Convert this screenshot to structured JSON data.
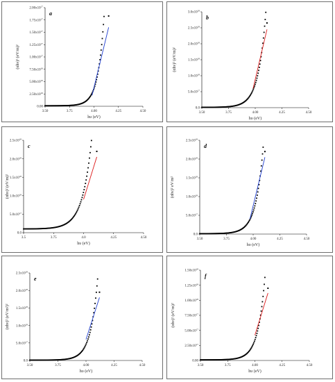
{
  "figure": {
    "colors": {
      "data": "#000000",
      "fit_blue": "#1f3fd0",
      "fit_red": "#dd1a1a",
      "axis": "#000000",
      "frame": "#6e6e6e"
    },
    "marker": "filled-square"
  },
  "chart_data": [
    {
      "type": "scatter",
      "panel": "a",
      "ylabel": "(αhν)² (eV/m)²",
      "xlabel": "hυ (eV)",
      "xlim": [
        3.5,
        4.5
      ],
      "ylim": [
        0,
        2e+17
      ],
      "xticks": [
        "3.50",
        "3.75",
        "4.00",
        "4.25",
        "4.50"
      ],
      "yticks": [
        {
          "v": 0,
          "m": "0.00",
          "e": ""
        },
        {
          "v": 2.5e+16,
          "m": "2.50x10",
          "e": "16"
        },
        {
          "v": 5e+16,
          "m": "5.00x10",
          "e": "16"
        },
        {
          "v": 7.5e+16,
          "m": "7.50x10",
          "e": "16"
        },
        {
          "v": 1e+17,
          "m": "1.00x10",
          "e": "17"
        },
        {
          "v": 1.25e+17,
          "m": "1.25x10",
          "e": "17"
        },
        {
          "v": 1.5e+17,
          "m": "1.50x10",
          "e": "17"
        },
        {
          "v": 1.75e+17,
          "m": "1.75x10",
          "e": "17"
        },
        {
          "v": 2e+17,
          "m": "2.00x10",
          "e": "17"
        }
      ],
      "curve": {
        "base": 1000000000000000.0,
        "edge": 3.5e+16,
        "k": 16,
        "x_start": 3.5,
        "x_end": 4.15
      },
      "fit": {
        "color": "#1f3fd0",
        "x": [
          3.98,
          4.15
        ],
        "y": [
          2.2e+16,
          1.6e+17
        ]
      },
      "outlier": {
        "x": 4.15,
        "y": 1.83e+17
      }
    },
    {
      "type": "scatter",
      "panel": "b",
      "ylabel": "(αhν)² (eV/m)²",
      "xlabel": "hυ (eV)",
      "xlim": [
        3.5,
        4.5
      ],
      "ylim": [
        0,
        3e+18
      ],
      "xticks": [
        "3.50",
        "3.75",
        "4.00",
        "4.25",
        "4.50"
      ],
      "yticks": [
        {
          "v": 0,
          "m": "0.0",
          "e": ""
        },
        {
          "v": 5e+17,
          "m": "5.0x10",
          "e": "17"
        },
        {
          "v": 1e+18,
          "m": "1.0x10",
          "e": "18"
        },
        {
          "v": 1.5e+18,
          "m": "1.5x10",
          "e": "18"
        },
        {
          "v": 2e+18,
          "m": "2.0x10",
          "e": "18"
        },
        {
          "v": 2.5e+18,
          "m": "2.5x10",
          "e": "18"
        },
        {
          "v": 3e+18,
          "m": "3.0x10",
          "e": "18"
        }
      ],
      "curve": {
        "base": 1e+16,
        "edge": 7.3e+17,
        "k": 14.2,
        "x_start": 3.5,
        "x_end": 4.11
      },
      "fit": {
        "color": "#dd1a1a",
        "x": [
          3.98,
          4.11
        ],
        "y": [
          6e+17,
          2.45e+18
        ]
      },
      "outlier": {
        "x": 4.11,
        "y": 2.65e+18
      }
    },
    {
      "type": "scatter",
      "panel": "c",
      "ylabel": "(αhν)² (eV/m)²",
      "xlabel": "hυ (eV)",
      "xlim": [
        3.5,
        4.5
      ],
      "ylim": [
        0,
        2.5e+18
      ],
      "xticks": [
        "3.5",
        "3.75",
        "4.0",
        "4.25",
        "4.50"
      ],
      "yticks": [
        {
          "v": 0,
          "m": "0.0",
          "e": ""
        },
        {
          "v": 5e+17,
          "m": "5.0x10",
          "e": "17"
        },
        {
          "v": 1e+18,
          "m": "1.0x10",
          "e": "18"
        },
        {
          "v": 1.5e+18,
          "m": "1.5x10",
          "e": "18"
        },
        {
          "v": 2e+18,
          "m": "2.0x10",
          "e": "18"
        },
        {
          "v": 2.5e+18,
          "m": "2.5x10",
          "e": "18"
        }
      ],
      "curve": {
        "base": 1e+17,
        "edge": 1e+18,
        "k": 13.3,
        "x_start": 3.5,
        "x_end": 4.11
      },
      "fit": {
        "color": "#dd1a1a",
        "x": [
          4.0,
          4.11
        ],
        "y": [
          9e+17,
          2.05e+18
        ]
      },
      "outlier": {
        "x": 4.11,
        "y": 2.2e+18
      }
    },
    {
      "type": "scatter",
      "panel": "d",
      "ylabel": "(αhν)² eV/m²",
      "xlabel": "hυ (eV)",
      "xlim": [
        3.5,
        4.5
      ],
      "ylim": [
        0,
        2.5e+18
      ],
      "xticks": [
        "3.50",
        "3.75",
        "4.00",
        "4.25",
        "4.50"
      ],
      "yticks": [
        {
          "v": 0,
          "m": "0.0",
          "e": ""
        },
        {
          "v": 5e+17,
          "m": "5.0x10",
          "e": "17"
        },
        {
          "v": 1e+18,
          "m": "1.0x10",
          "e": "18"
        },
        {
          "v": 1.5e+18,
          "m": "1.5x10",
          "e": "18"
        },
        {
          "v": 2e+18,
          "m": "2.0x10",
          "e": "18"
        },
        {
          "v": 2.5e+18,
          "m": "2.5x10",
          "e": "18"
        }
      ],
      "curve": {
        "base": 1e+16,
        "edge": 5.9e+17,
        "k": 14.6,
        "x_start": 3.5,
        "x_end": 4.11
      },
      "fit": {
        "color": "#1f3fd0",
        "x": [
          3.97,
          4.11
        ],
        "y": [
          4e+17,
          2.05e+18
        ]
      },
      "outlier": {
        "x": 4.11,
        "y": 2.2e+18
      }
    },
    {
      "type": "scatter",
      "panel": "e",
      "ylabel": "(αhν)² (eV/m²)²",
      "xlabel": "hυ (eV)",
      "xlim": [
        3.5,
        4.5
      ],
      "ylim": [
        0,
        2.5e+18
      ],
      "xticks": [
        "3.50",
        "3.75",
        "4.00",
        "4.25",
        "4.50"
      ],
      "yticks": [
        {
          "v": 0,
          "m": "0.0",
          "e": ""
        },
        {
          "v": 5e+17,
          "m": "5.0x10",
          "e": "17"
        },
        {
          "v": 1e+18,
          "m": "1.0x10",
          "e": "18"
        },
        {
          "v": 1.5e+18,
          "m": "1.5x10",
          "e": "18"
        },
        {
          "v": 2e+18,
          "m": "2.0x10",
          "e": "18"
        },
        {
          "v": 2.5e+18,
          "m": "2.5x10",
          "e": "18"
        }
      ],
      "curve": {
        "base": 1e+16,
        "edge": 4.5e+17,
        "k": 15.9,
        "x_start": 3.5,
        "x_end": 4.12
      },
      "fit": {
        "color": "#1f3fd0",
        "x": [
          4.0,
          4.12
        ],
        "y": [
          6e+17,
          1.8e+18
        ]
      },
      "outlier": {
        "x": 4.12,
        "y": 1.95e+18
      }
    },
    {
      "type": "scatter",
      "panel": "f",
      "ylabel": "(αhν)² (eV/m)²",
      "xlabel": "hυ (eV)",
      "xlim": [
        3.5,
        4.5
      ],
      "ylim": [
        0,
        1.5e+18
      ],
      "xticks": [
        "3.50",
        "3.75",
        "4.00",
        "4.25",
        "4.50"
      ],
      "yticks": [
        {
          "v": 0,
          "m": "0.00",
          "e": ""
        },
        {
          "v": 2.5e+17,
          "m": "2.50x10",
          "e": "17"
        },
        {
          "v": 5e+17,
          "m": "5.00x10",
          "e": "17"
        },
        {
          "v": 7.5e+17,
          "m": "7.50x10",
          "e": "17"
        },
        {
          "v": 1e+18,
          "m": "1.00x10",
          "e": "18"
        },
        {
          "v": 1.25e+18,
          "m": "1.25x10",
          "e": "18"
        },
        {
          "v": 1.5e+18,
          "m": "1.50x10",
          "e": "18"
        }
      ],
      "curve": {
        "base": 1e+16,
        "edge": 3.3e+17,
        "k": 15.5,
        "x_start": 3.5,
        "x_end": 4.12
      },
      "fit": {
        "color": "#dd1a1a",
        "x": [
          4.0,
          4.12
        ],
        "y": [
          4.2e+17,
          1.12e+18
        ]
      },
      "outlier": {
        "x": 4.12,
        "y": 1.2e+18
      }
    }
  ]
}
